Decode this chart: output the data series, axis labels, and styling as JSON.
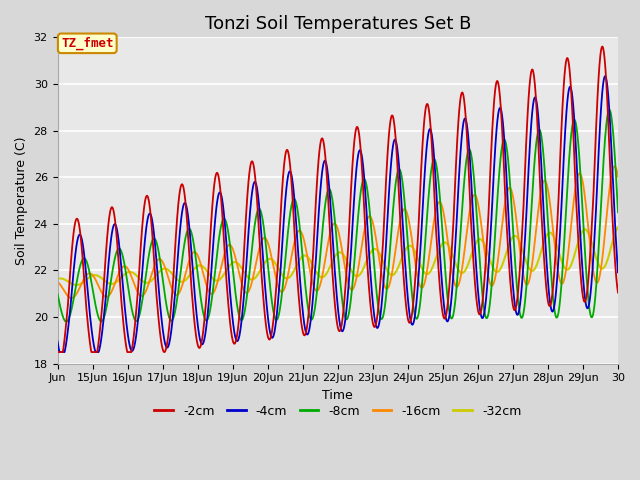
{
  "title": "Tonzi Soil Temperatures Set B",
  "xlabel": "Time",
  "ylabel": "Soil Temperature (C)",
  "ylim": [
    18,
    32
  ],
  "xlim_days": [
    14,
    30
  ],
  "xtick_labels": [
    "Jun",
    "15Jun",
    "16Jun",
    "17Jun",
    "18Jun",
    "19Jun",
    "20Jun",
    "21Jun",
    "22Jun",
    "23Jun",
    "24Jun",
    "25Jun",
    "26Jun",
    "27Jun",
    "28Jun",
    "29Jun",
    "30"
  ],
  "xtick_positions": [
    14,
    15,
    16,
    17,
    18,
    19,
    20,
    21,
    22,
    23,
    24,
    25,
    26,
    27,
    28,
    29,
    30
  ],
  "ytick_positions": [
    18,
    20,
    22,
    24,
    26,
    28,
    30,
    32
  ],
  "series_colors": [
    "#cc0000",
    "#0000cc",
    "#00aa00",
    "#ff8800",
    "#cccc00"
  ],
  "series_labels": [
    "-2cm",
    "-4cm",
    "-8cm",
    "-16cm",
    "-32cm"
  ],
  "annotation_label": "TZ_fmet",
  "annotation_box_color": "#ffffcc",
  "annotation_box_edge": "#cc8800",
  "annotation_text_color": "#cc0000",
  "bg_color": "#d8d8d8",
  "plot_bg_color": "#e8e8e8",
  "grid_color": "#ffffff",
  "title_fontsize": 13,
  "axis_label_fontsize": 9,
  "tick_fontsize": 8,
  "legend_fontsize": 9,
  "figsize": [
    6.4,
    4.8
  ],
  "dpi": 100
}
